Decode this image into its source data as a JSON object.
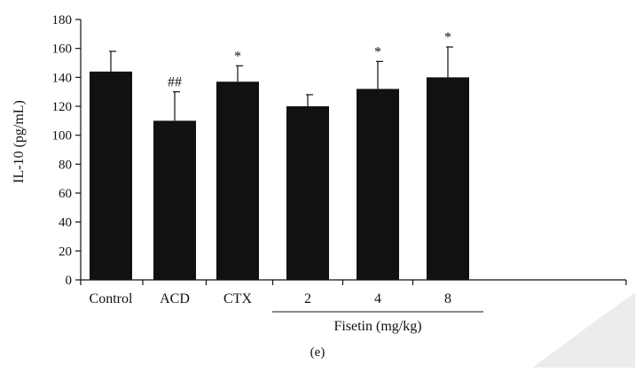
{
  "chart_data": {
    "type": "bar",
    "title": "",
    "xlabel": "",
    "ylabel": "IL-10 (pg/mL)",
    "ylim": [
      0,
      180
    ],
    "yticks": [
      0,
      20,
      40,
      60,
      80,
      100,
      120,
      140,
      160,
      180
    ],
    "categories": [
      "Control",
      "ACD",
      "CTX",
      "2",
      "4",
      "8"
    ],
    "values": [
      144,
      110,
      137,
      120,
      132,
      140
    ],
    "error_upper": [
      158,
      130,
      148,
      128,
      151,
      161
    ],
    "significance": [
      "",
      "##",
      "*",
      "",
      "*",
      "*"
    ],
    "group_label": {
      "text": "Fisetin (mg/kg)",
      "categories": [
        "2",
        "4",
        "8"
      ]
    },
    "panel_label": "(e)",
    "grid": false,
    "legend": "none",
    "colors": {
      "bar": "#111111",
      "axis": "#111111",
      "watermark": "#e6e6e6"
    }
  }
}
